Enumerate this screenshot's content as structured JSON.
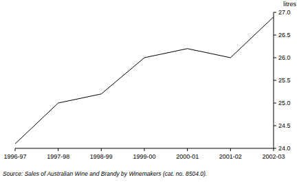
{
  "chart_data": {
    "type": "line",
    "y_label": "litres",
    "source": "Source: Sales of Australian Wine and Brandy by Winemakers (cat. no. 8504.0).",
    "categories": [
      "1996-97",
      "1997-98",
      "1998-99",
      "1999-00",
      "2000-01",
      "2001-02",
      "2002-03"
    ],
    "values": [
      24.1,
      25.0,
      25.2,
      26.0,
      26.2,
      26.0,
      26.9
    ],
    "color": "#000000",
    "ylim": [
      24.0,
      27.0
    ],
    "yticks": [
      {
        "value": 24.0,
        "label": "24.0"
      },
      24.5,
      {
        "value": 25.0,
        "label": "25.0"
      },
      25.5,
      {
        "value": 26.0,
        "label": "26.0"
      },
      26.5,
      {
        "value": 27.0,
        "label": "27.0"
      }
    ],
    "grid": false
  }
}
